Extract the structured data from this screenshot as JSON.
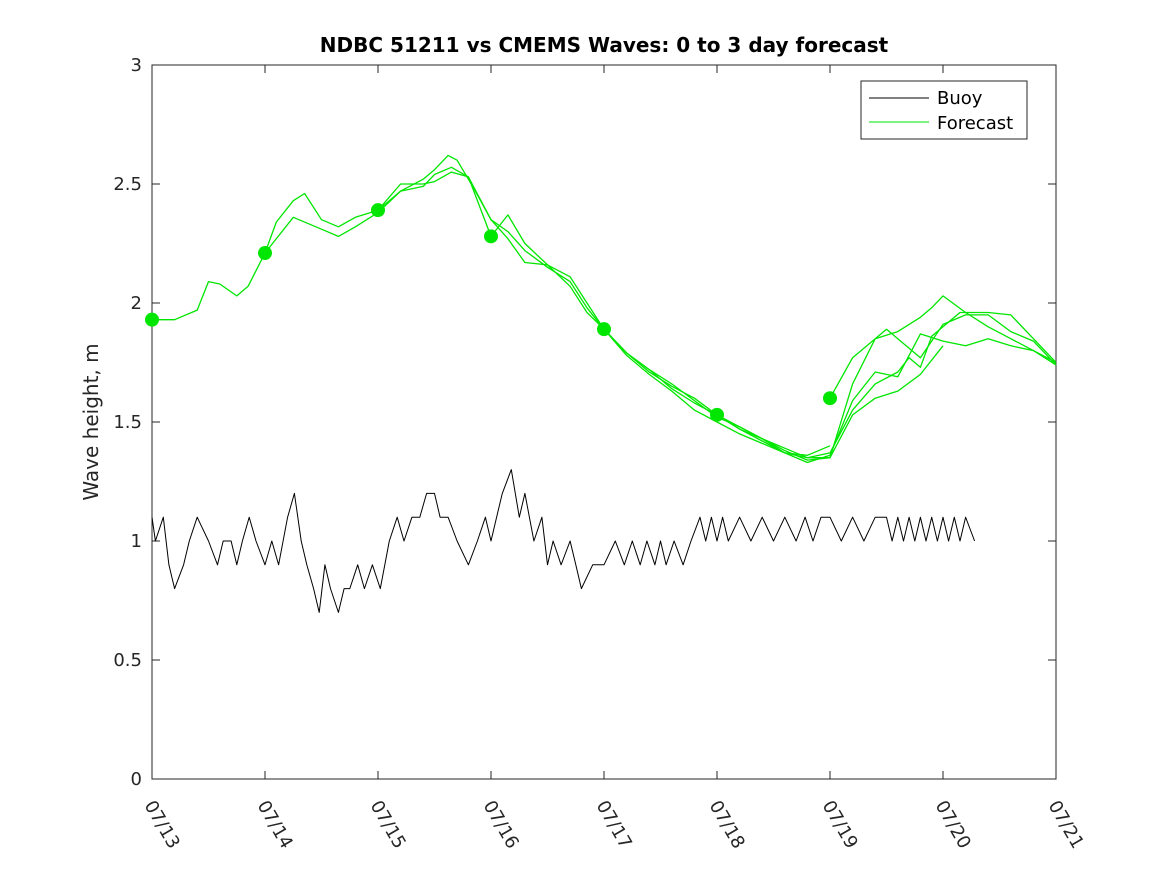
{
  "chart_data": {
    "type": "line",
    "title": "NDBC 51211 vs CMEMS Waves: 0 to 3 day forecast",
    "xlabel": "",
    "ylabel": "Wave height, m",
    "xlim": [
      "07/13",
      "07/21"
    ],
    "ylim": [
      0,
      3
    ],
    "x_ticks": [
      "07/13",
      "07/14",
      "07/15",
      "07/16",
      "07/17",
      "07/18",
      "07/19",
      "07/20",
      "07/21"
    ],
    "y_ticks": [
      "0",
      "0.5",
      "1",
      "1.5",
      "2",
      "2.5",
      "3"
    ],
    "grid": false,
    "legend_position": "top-right",
    "legend": [
      {
        "label": "Buoy",
        "color": "#000000"
      },
      {
        "label": "Forecast",
        "color": "#00e600"
      }
    ],
    "colors": {
      "buoy": "#000000",
      "forecast": "#00e600",
      "axis": "#262626"
    },
    "x_unit": "days since 07/13 00:00",
    "series": [
      {
        "name": "Buoy",
        "kind": "line",
        "x": [
          0.0,
          0.03,
          0.1,
          0.15,
          0.2,
          0.28,
          0.33,
          0.4,
          0.5,
          0.58,
          0.63,
          0.7,
          0.75,
          0.8,
          0.86,
          0.92,
          1.0,
          1.06,
          1.12,
          1.2,
          1.26,
          1.32,
          1.37,
          1.43,
          1.48,
          1.53,
          1.58,
          1.65,
          1.7,
          1.75,
          1.82,
          1.88,
          1.95,
          2.02,
          2.1,
          2.17,
          2.23,
          2.3,
          2.37,
          2.43,
          2.5,
          2.55,
          2.62,
          2.7,
          2.8,
          2.88,
          2.95,
          3.0,
          3.05,
          3.1,
          3.18,
          3.25,
          3.3,
          3.38,
          3.45,
          3.5,
          3.55,
          3.62,
          3.7,
          3.75,
          3.8,
          3.9,
          3.95,
          4.0,
          4.1,
          4.18,
          4.25,
          4.32,
          4.38,
          4.45,
          4.5,
          4.55,
          4.62,
          4.7,
          4.77,
          4.85,
          4.9,
          4.95,
          5.0,
          5.05,
          5.1,
          5.2,
          5.3,
          5.4,
          5.5,
          5.6,
          5.7,
          5.78,
          5.85,
          5.92,
          6.0,
          6.1,
          6.2,
          6.3,
          6.4,
          6.5,
          6.55,
          6.6,
          6.65,
          6.7,
          6.75,
          6.8,
          6.85,
          6.9,
          6.95,
          7.0,
          7.05,
          7.1,
          7.15,
          7.2,
          7.28
        ],
        "y": [
          1.1,
          1.0,
          1.1,
          0.9,
          0.8,
          0.9,
          1.0,
          1.1,
          1.0,
          0.9,
          1.0,
          1.0,
          0.9,
          1.0,
          1.1,
          1.0,
          0.9,
          1.0,
          0.9,
          1.1,
          1.2,
          1.0,
          0.9,
          0.8,
          0.7,
          0.9,
          0.8,
          0.7,
          0.8,
          0.8,
          0.9,
          0.8,
          0.9,
          0.8,
          1.0,
          1.1,
          1.0,
          1.1,
          1.1,
          1.2,
          1.2,
          1.1,
          1.1,
          1.0,
          0.9,
          1.0,
          1.1,
          1.0,
          1.1,
          1.2,
          1.3,
          1.1,
          1.2,
          1.0,
          1.1,
          0.9,
          1.0,
          0.9,
          1.0,
          0.9,
          0.8,
          0.9,
          0.9,
          0.9,
          1.0,
          0.9,
          1.0,
          0.9,
          1.0,
          0.9,
          1.0,
          0.9,
          1.0,
          0.9,
          1.0,
          1.1,
          1.0,
          1.1,
          1.0,
          1.1,
          1.0,
          1.1,
          1.0,
          1.1,
          1.0,
          1.1,
          1.0,
          1.1,
          1.0,
          1.1,
          1.1,
          1.0,
          1.1,
          1.0,
          1.1,
          1.1,
          1.0,
          1.1,
          1.0,
          1.1,
          1.0,
          1.1,
          1.0,
          1.1,
          1.0,
          1.1,
          1.0,
          1.1,
          1.0,
          1.1,
          1.0
        ]
      },
      {
        "name": "Forecast",
        "kind": "line",
        "x": [
          0.0,
          0.2,
          0.4,
          0.5,
          0.6,
          0.75,
          0.85,
          1.0,
          1.1,
          1.25,
          1.35,
          1.5,
          1.65,
          1.8,
          2.0,
          2.2,
          2.4,
          2.5,
          2.65,
          2.8,
          3.0
        ],
        "y": [
          1.93,
          1.93,
          1.97,
          2.09,
          2.08,
          2.03,
          2.07,
          2.21,
          2.34,
          2.43,
          2.46,
          2.35,
          2.32,
          2.36,
          2.39,
          2.5,
          2.5,
          2.51,
          2.55,
          2.53,
          2.28
        ]
      },
      {
        "name": "Forecast",
        "kind": "line",
        "x": [
          1.0,
          1.25,
          1.5,
          1.65,
          1.8,
          2.0,
          2.2,
          2.4,
          2.5,
          2.65,
          2.8,
          3.0,
          3.15,
          3.3,
          3.5,
          3.7,
          3.85,
          4.0,
          4.2,
          4.4,
          4.6,
          4.8,
          5.0,
          5.2,
          5.4,
          5.6,
          5.8,
          6.0
        ],
        "y": [
          2.21,
          2.36,
          2.31,
          2.28,
          2.32,
          2.38,
          2.47,
          2.49,
          2.54,
          2.57,
          2.53,
          2.35,
          2.3,
          2.22,
          2.15,
          2.09,
          1.98,
          1.89,
          1.78,
          1.7,
          1.63,
          1.55,
          1.5,
          1.45,
          1.41,
          1.37,
          1.36,
          1.4
        ]
      },
      {
        "name": "Forecast",
        "kind": "line",
        "x": [
          2.0,
          2.2,
          2.4,
          2.5,
          2.62,
          2.7,
          2.85,
          3.0,
          3.15,
          3.3,
          3.5,
          3.7,
          3.85,
          4.0,
          4.2,
          4.4,
          4.6,
          4.8,
          5.0,
          5.2,
          5.4,
          5.6,
          5.8,
          6.0,
          6.2,
          6.4,
          6.6,
          6.8,
          7.0
        ],
        "y": [
          2.39,
          2.47,
          2.52,
          2.56,
          2.62,
          2.6,
          2.48,
          2.35,
          2.27,
          2.17,
          2.16,
          2.07,
          1.96,
          1.89,
          1.79,
          1.72,
          1.64,
          1.58,
          1.53,
          1.48,
          1.43,
          1.38,
          1.34,
          1.35,
          1.53,
          1.6,
          1.63,
          1.7,
          1.82
        ]
      },
      {
        "name": "Forecast",
        "kind": "line",
        "x": [
          3.0,
          3.15,
          3.3,
          3.5,
          3.7,
          3.85,
          4.0,
          4.2,
          4.4,
          4.6,
          4.8,
          5.0,
          5.2,
          5.4,
          5.6,
          5.8,
          6.0,
          6.2,
          6.4,
          6.6,
          6.8,
          7.0,
          7.2,
          7.4,
          7.6,
          7.8,
          8.0
        ],
        "y": [
          2.28,
          2.37,
          2.25,
          2.16,
          2.11,
          2.0,
          1.89,
          1.79,
          1.71,
          1.65,
          1.6,
          1.53,
          1.47,
          1.42,
          1.37,
          1.33,
          1.36,
          1.59,
          1.71,
          1.69,
          1.87,
          1.84,
          1.82,
          1.85,
          1.82,
          1.8,
          1.75
        ]
      },
      {
        "name": "Forecast",
        "kind": "line",
        "x": [
          4.0,
          4.2,
          4.4,
          4.6,
          4.8,
          5.0,
          5.2,
          5.4,
          5.6,
          5.8,
          6.0,
          6.2,
          6.4,
          6.5,
          6.6,
          6.8,
          7.0,
          7.2,
          7.4,
          7.6,
          7.8,
          8.0
        ],
        "y": [
          1.89,
          1.79,
          1.72,
          1.66,
          1.59,
          1.52,
          1.48,
          1.43,
          1.37,
          1.35,
          1.35,
          1.66,
          1.85,
          1.89,
          1.85,
          1.77,
          1.91,
          1.95,
          1.95,
          1.88,
          1.84,
          1.74
        ]
      },
      {
        "name": "Forecast",
        "kind": "line",
        "x": [
          5.0,
          5.2,
          5.4,
          5.6,
          5.8,
          6.0,
          6.2,
          6.4,
          6.6,
          6.7,
          6.8,
          6.9,
          7.0,
          7.15,
          7.4,
          7.6,
          7.8,
          8.0
        ],
        "y": [
          1.53,
          1.47,
          1.43,
          1.39,
          1.35,
          1.37,
          1.55,
          1.66,
          1.71,
          1.77,
          1.73,
          1.86,
          1.9,
          1.96,
          1.96,
          1.95,
          1.85,
          1.75
        ]
      },
      {
        "name": "Forecast",
        "kind": "line",
        "x": [
          6.0,
          6.2,
          6.4,
          6.6,
          6.8,
          6.9,
          7.0,
          7.2,
          7.4,
          7.6,
          7.8,
          8.0
        ],
        "y": [
          1.6,
          1.77,
          1.85,
          1.88,
          1.94,
          1.98,
          2.03,
          1.96,
          1.9,
          1.85,
          1.8,
          1.74
        ]
      },
      {
        "name": "Forecast",
        "kind": "markers",
        "x": [
          0,
          1,
          2,
          3,
          4,
          5,
          6
        ],
        "y": [
          1.93,
          2.21,
          2.39,
          2.28,
          1.89,
          1.53,
          1.6
        ]
      }
    ]
  }
}
